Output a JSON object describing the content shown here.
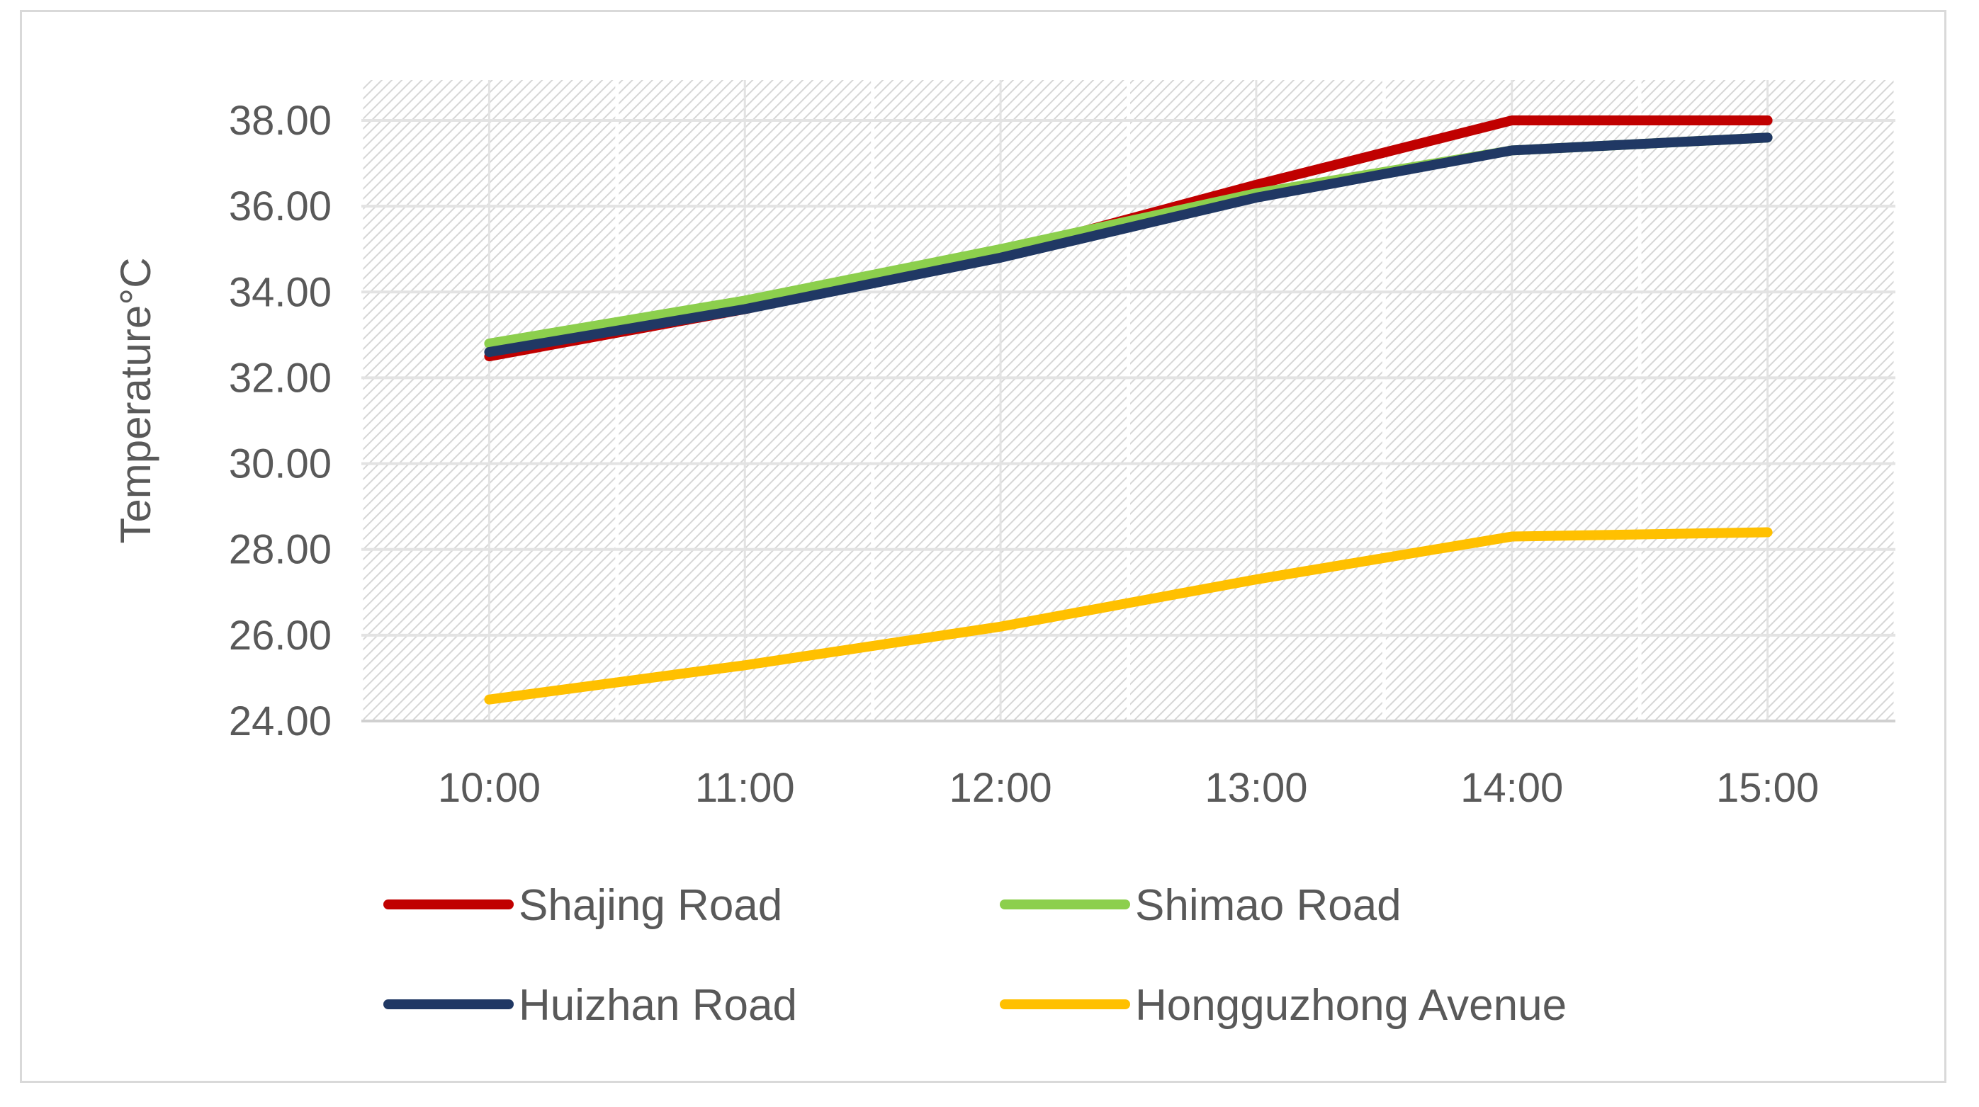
{
  "chart_data": {
    "type": "line",
    "title": "",
    "xlabel": "",
    "ylabel": "Temperature°C",
    "categories": [
      "10:00",
      "11:00",
      "12:00",
      "13:00",
      "14:00",
      "15:00"
    ],
    "ylim": [
      24,
      38
    ],
    "yticks": [
      "24.00",
      "26.00",
      "28.00",
      "30.00",
      "32.00",
      "34.00",
      "36.00",
      "38.00"
    ],
    "grid": true,
    "legend_position": "bottom",
    "series": [
      {
        "name": "Shajing Road",
        "color": "#c00000",
        "values": [
          32.5,
          33.6,
          34.9,
          36.5,
          38.0,
          38.0
        ]
      },
      {
        "name": "Shimao Road",
        "color": "#8ccf4d",
        "values": [
          32.8,
          33.8,
          35.0,
          36.3,
          37.3,
          37.6
        ]
      },
      {
        "name": "Huizhan Road",
        "color": "#203864",
        "values": [
          32.6,
          33.6,
          34.8,
          36.2,
          37.3,
          37.6
        ]
      },
      {
        "name": "Hongguzhong Avenue",
        "color": "#ffc000",
        "values": [
          24.5,
          25.3,
          26.2,
          27.3,
          28.3,
          28.4
        ]
      }
    ]
  }
}
